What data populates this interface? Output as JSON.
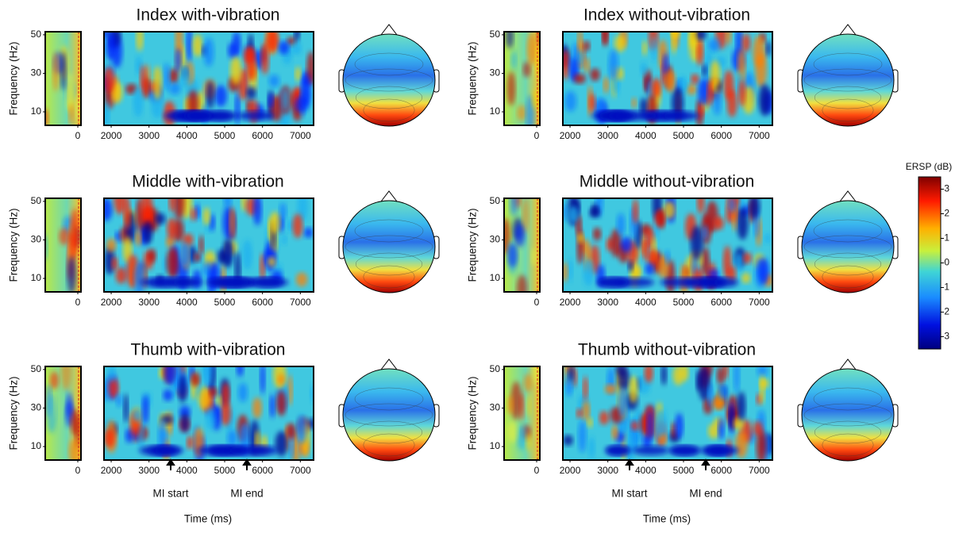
{
  "panels": [
    {
      "title": "Index with-vibration"
    },
    {
      "title": "Index without-vibration"
    },
    {
      "title": "Middle with-vibration"
    },
    {
      "title": "Middle without-vibration"
    },
    {
      "title": "Thumb with-vibration"
    },
    {
      "title": "Thumb without-vibration"
    }
  ],
  "y_axis": {
    "label": "Frequency (Hz)",
    "ticks": [
      50,
      30,
      10
    ],
    "lim": [
      3,
      51.6
    ]
  },
  "baseline_x_ticks": [
    0
  ],
  "x_ticks": [
    2000,
    3000,
    4000,
    5000,
    6000,
    7000
  ],
  "xlim": [
    1810,
    7350
  ],
  "x_axis_label": "Time (ms)",
  "markers": [
    {
      "label": "MI start"
    },
    {
      "label": "MI end"
    }
  ],
  "colorbar": {
    "label": "ERSP (dB)",
    "ticks": [
      3,
      2,
      1,
      0,
      -1,
      -2,
      -3
    ],
    "lim": [
      -3.5,
      3.5
    ]
  }
}
